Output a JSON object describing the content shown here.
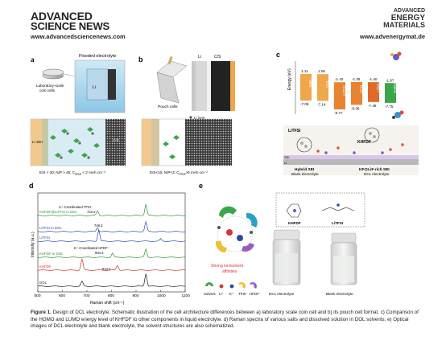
{
  "header": {
    "journal_left_line1": "ADVANCED",
    "journal_left_line2": "SCIENCE NEWS",
    "url_left": "www.advancedsciencenews.com",
    "journal_right_line1": "ADVANCED",
    "journal_right_line2": "ENERGY",
    "journal_right_line3": "MATERIALS",
    "url_right": "www.advenergymat.de"
  },
  "panel_a": {
    "letter": "a",
    "title": "Flooded electrolyte",
    "coin_label_line1": "Laboratory-scale",
    "coin_label_line2": "coin cells",
    "li_label": "Li",
    "sei_label": "Li  SEI",
    "cs_label": "C/S",
    "formula": "E/S > 30; N/P > 45; C",
    "formula_sub": "Areal",
    "formula_tail": " < 2 mAh cm⁻²"
  },
  "panel_b": {
    "letter": "b",
    "li_label": "Li",
    "cs_label": "C/S",
    "pouch_label": "Pouch cells",
    "legend_li_ions": "Li ions",
    "legend_solvents": "Solvents",
    "legend_dead": "Dead",
    "legend_sei": "SEI",
    "formula": "E/S<10; N/P<3; C",
    "formula_sub": "Areal",
    "formula_tail": ">5 mAh cm⁻²"
  },
  "panel_c": {
    "letter": "c",
    "ylabel": "Energy (eV)",
    "species": [
      "DME",
      "DOL",
      "LiTFSI",
      "LiFSI",
      "LiNO₃",
      "KHFDF"
    ],
    "homo": [
      "-7.05",
      "-7.14",
      "-9.77",
      "-8.36",
      "-7.48",
      "-7.75"
    ],
    "lumo": [
      "1.11",
      "1.06",
      "-1.42",
      "-1.35",
      "-1.40",
      "-1.67"
    ],
    "litfsi_label": "LiTFSI",
    "khfdf_label": "KHFDF",
    "hybrid_sei": "Hybrid SEI",
    "blank_electrolyte": "Blank electrolyte",
    "kf_sei": "KF@LiF-rich SEI",
    "dcl_electrolyte": "DCL electrolyte",
    "sei_tag": "SEI",
    "li_tag": "Li"
  },
  "panel_d": {
    "letter": "d",
    "ylabel": "Intensity (a.u.)",
    "xlabel": "Raman shift (cm⁻¹)",
    "x_ticks": [
      "500",
      "600",
      "700",
      "800",
      "900",
      "1000",
      "1100"
    ],
    "traces": [
      "KHFDF@LiTFSI in DOL",
      "LiTFSI in DOL",
      "LiTFSI",
      "KHFDF in DOL",
      "KHFDF",
      "DOL"
    ],
    "annot_1": "Li⁺-Coordinated TFSI⁻",
    "annot_1_val": "743.2",
    "annot_2": "748.3",
    "annot_3": "K⁺-Coordinated HFDF⁻",
    "annot_3_val": "804.2",
    "annot_4": "824.6"
  },
  "panel_e": {
    "letter": "e",
    "khfdf": "KHFDF",
    "litfsi": "LiTFSI",
    "strong_line1": "Strong ion/solvent",
    "strong_line2": "affinities",
    "legend": [
      "Solvent",
      "Li⁺",
      "K⁺",
      "TFSI⁻",
      "HFDF⁻"
    ],
    "dcl": "DCL electrolyte",
    "blank": "Blank electrolyte"
  },
  "caption": {
    "fig": "Figure 1.",
    "text": " Design of DCL electrolyte. Schematic illustration of the cell architecture differences between a) laboratory scale coin cell and b) its pouch cell format. c) Comparison of the HOMO and LUMO energy level of KHFDF to other components in liquid electrolyte. d) Raman spectra of various salts and dissolved solution in DOL solvents. e) Optical images of DCL electrolyte and blank electrolyte, the solvent structures are also schematized."
  },
  "colors": {
    "orange_bar": "#e8832f",
    "red_line": "#d9302a",
    "green_line": "#3a9a3a",
    "blue_line": "#2c4aa0",
    "teal_line": "#1c8c8c"
  }
}
